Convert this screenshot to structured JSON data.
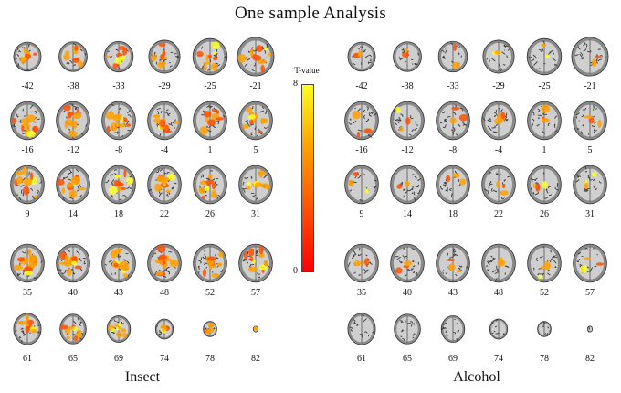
{
  "title": "One sample Analysis",
  "colorbar": {
    "label": "T-value",
    "max": "8",
    "min": "0",
    "colors": [
      "#ffff22",
      "#ffa000",
      "#ff5000",
      "#ff0000"
    ]
  },
  "slice_rows": [
    [
      "-42",
      "-38",
      "-33",
      "-29",
      "-25",
      "-21"
    ],
    [
      "-16",
      "-12",
      "-8",
      "-4",
      "1",
      "5"
    ],
    [
      "9",
      "14",
      "18",
      "22",
      "26",
      "31"
    ],
    [
      "35",
      "40",
      "43",
      "48",
      "52",
      "57"
    ],
    [
      "61",
      "65",
      "69",
      "74",
      "78",
      "82"
    ]
  ],
  "panels": [
    {
      "id": "insect",
      "label": "Insect",
      "activation": [
        0.55,
        0.6,
        0.6,
        0.75,
        0.75
      ]
    },
    {
      "id": "alcohol",
      "label": "Alcohol",
      "activation": [
        0.08,
        0.12,
        0.1,
        0.12,
        0.04
      ]
    }
  ]
}
